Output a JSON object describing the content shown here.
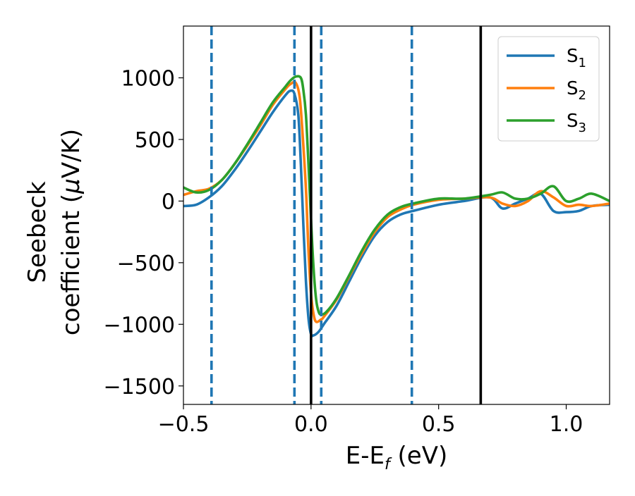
{
  "chart_data": {
    "type": "line",
    "xlabel": {
      "main": "E-E",
      "sub": "f",
      "tail": " (eV)"
    },
    "ylabel": {
      "line1": "Seebeck",
      "line2_main": "coefficient  (",
      "line2_mu": "μ",
      "line2_tail": "V/K)"
    },
    "xlim": [
      -0.5,
      1.17
    ],
    "ylim": [
      -1650,
      1420
    ],
    "xticks": [
      -0.5,
      0.0,
      0.5,
      1.0
    ],
    "xtick_labels": [
      "−0.5",
      "0.0",
      "0.5",
      "1.0"
    ],
    "yticks": [
      -1500,
      -1000,
      -500,
      0,
      500,
      1000
    ],
    "ytick_labels": [
      "−1500",
      "−1000",
      "−500",
      "0",
      "500",
      "1000"
    ],
    "grid": false,
    "legend_position": "top-right",
    "vlines_dashed": {
      "color": "#1f77b4",
      "x": [
        -0.39,
        -0.065,
        0.04,
        0.395
      ]
    },
    "vlines_solid": {
      "color": "#000000",
      "x": [
        0.0,
        0.665
      ]
    },
    "series": [
      {
        "name": "S",
        "sub": "1",
        "color": "#1f77b4",
        "x": [
          -0.5,
          -0.45,
          -0.4,
          -0.35,
          -0.3,
          -0.25,
          -0.2,
          -0.15,
          -0.1,
          -0.08,
          -0.065,
          -0.05,
          -0.04,
          -0.03,
          -0.02,
          -0.01,
          0.0,
          0.01,
          0.03,
          0.05,
          0.1,
          0.15,
          0.2,
          0.25,
          0.3,
          0.35,
          0.4,
          0.5,
          0.6,
          0.7,
          0.75,
          0.8,
          0.85,
          0.9,
          0.95,
          1.0,
          1.05,
          1.1,
          1.17
        ],
        "y": [
          -40,
          -30,
          30,
          120,
          250,
          400,
          560,
          720,
          860,
          895,
          870,
          700,
          300,
          -200,
          -650,
          -950,
          -1080,
          -1090,
          -1060,
          -1000,
          -850,
          -650,
          -450,
          -280,
          -170,
          -110,
          -80,
          -30,
          0,
          30,
          -60,
          -20,
          20,
          60,
          -80,
          -90,
          -80,
          -40,
          -30
        ]
      },
      {
        "name": "S",
        "sub": "2",
        "color": "#ff7f0e",
        "x": [
          -0.5,
          -0.45,
          -0.4,
          -0.35,
          -0.3,
          -0.25,
          -0.2,
          -0.15,
          -0.1,
          -0.08,
          -0.06,
          -0.045,
          -0.035,
          -0.02,
          -0.01,
          0.0,
          0.01,
          0.02,
          0.04,
          0.05,
          0.1,
          0.15,
          0.2,
          0.25,
          0.3,
          0.35,
          0.4,
          0.5,
          0.6,
          0.7,
          0.75,
          0.8,
          0.85,
          0.9,
          0.95,
          1.0,
          1.05,
          1.1,
          1.17
        ],
        "y": [
          50,
          80,
          100,
          170,
          300,
          450,
          610,
          780,
          910,
          950,
          960,
          850,
          600,
          100,
          -400,
          -750,
          -920,
          -980,
          -960,
          -940,
          -800,
          -610,
          -420,
          -250,
          -130,
          -70,
          -30,
          10,
          20,
          30,
          -20,
          -40,
          0,
          80,
          30,
          -40,
          -30,
          -40,
          -20
        ]
      },
      {
        "name": "S",
        "sub": "3",
        "color": "#2ca02c",
        "x": [
          -0.5,
          -0.45,
          -0.4,
          -0.35,
          -0.3,
          -0.25,
          -0.2,
          -0.15,
          -0.1,
          -0.08,
          -0.06,
          -0.04,
          -0.03,
          -0.02,
          -0.01,
          0.0,
          0.01,
          0.02,
          0.03,
          0.04,
          0.06,
          0.1,
          0.15,
          0.2,
          0.25,
          0.3,
          0.35,
          0.4,
          0.5,
          0.6,
          0.7,
          0.75,
          0.8,
          0.85,
          0.9,
          0.95,
          1.0,
          1.05,
          1.1,
          1.17
        ],
        "y": [
          110,
          70,
          90,
          170,
          300,
          460,
          630,
          800,
          930,
          980,
          1010,
          1000,
          900,
          700,
          300,
          -150,
          -550,
          -800,
          -900,
          -920,
          -900,
          -790,
          -600,
          -400,
          -230,
          -110,
          -50,
          -20,
          20,
          20,
          50,
          70,
          20,
          20,
          60,
          120,
          0,
          20,
          60,
          0
        ]
      }
    ]
  }
}
